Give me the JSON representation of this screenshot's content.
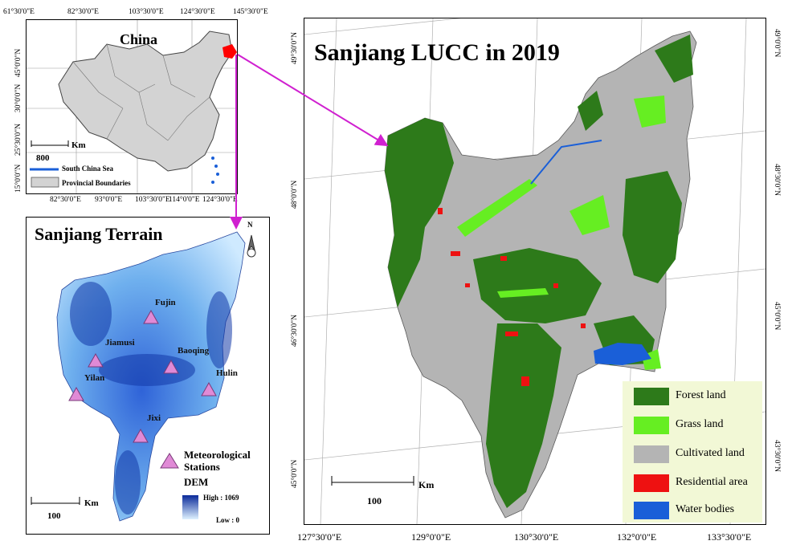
{
  "china_panel": {
    "title": "China",
    "lon_top": [
      "61°30'0\"E",
      "82°30'0\"E",
      "103°30'0\"E",
      "124°30'0\"E",
      "145°30'0\"E"
    ],
    "lon_bottom": [
      "82°30'0\"E",
      "93°0'0\"E",
      "103°30'0\"E",
      "114°0'0\"E",
      "124°30'0\"E"
    ],
    "lat_left": [
      "45°0'0\"N",
      "30°0'0\"N",
      "25°30'0\"N",
      "15°0'0\"N"
    ],
    "scale_unit": "Km",
    "scale_value": "800",
    "legend_sea": "South China Sea",
    "legend_boundaries": "Provincial Boundaries"
  },
  "terrain_panel": {
    "title": "Sanjiang Terrain",
    "stations": [
      {
        "name": "Fujin"
      },
      {
        "name": "Jiamusi"
      },
      {
        "name": "Baoqing"
      },
      {
        "name": "Hulin"
      },
      {
        "name": "Yilan"
      },
      {
        "name": "Jixi"
      }
    ],
    "legend_stations": "Meteorological Stations",
    "dem_label": "DEM",
    "dem_high": "High : 1069",
    "dem_low": "Low : 0",
    "scale_unit": "Km",
    "scale_value": "100",
    "north_letter": "N"
  },
  "lucc_panel": {
    "title": "Sanjiang LUCC in 2019",
    "lat_left": [
      "49°30'0\"N",
      "48°0'0\"N",
      "46°30'0\"N",
      "45°0'0\"N"
    ],
    "lat_right": [
      "49°0'0\"N",
      "48°30'0\"N",
      "45°0'0\"N",
      "43°30'0\"N"
    ],
    "lon_bottom": [
      "127°30'0\"E",
      "129°0'0\"E",
      "130°30'0\"E",
      "132°0'0\"E",
      "133°30'0\"E"
    ],
    "scale_unit": "Km",
    "scale_value": "100",
    "legend": [
      {
        "label": "Forest land",
        "color": "#2d7a1a"
      },
      {
        "label": "Grass land",
        "color": "#66ee22"
      },
      {
        "label": "Cultivated land",
        "color": "#b4b4b4"
      },
      {
        "label": "Residential area",
        "color": "#ee1111"
      },
      {
        "label": "Water bodies",
        "color": "#1a5fd8"
      }
    ]
  },
  "colors": {
    "arrow": "#d020d0",
    "highlight": "#ff0000",
    "dem_high": "#0a2a9a",
    "dem_low": "#dff2ff",
    "station_fill": "#e08ad6"
  }
}
